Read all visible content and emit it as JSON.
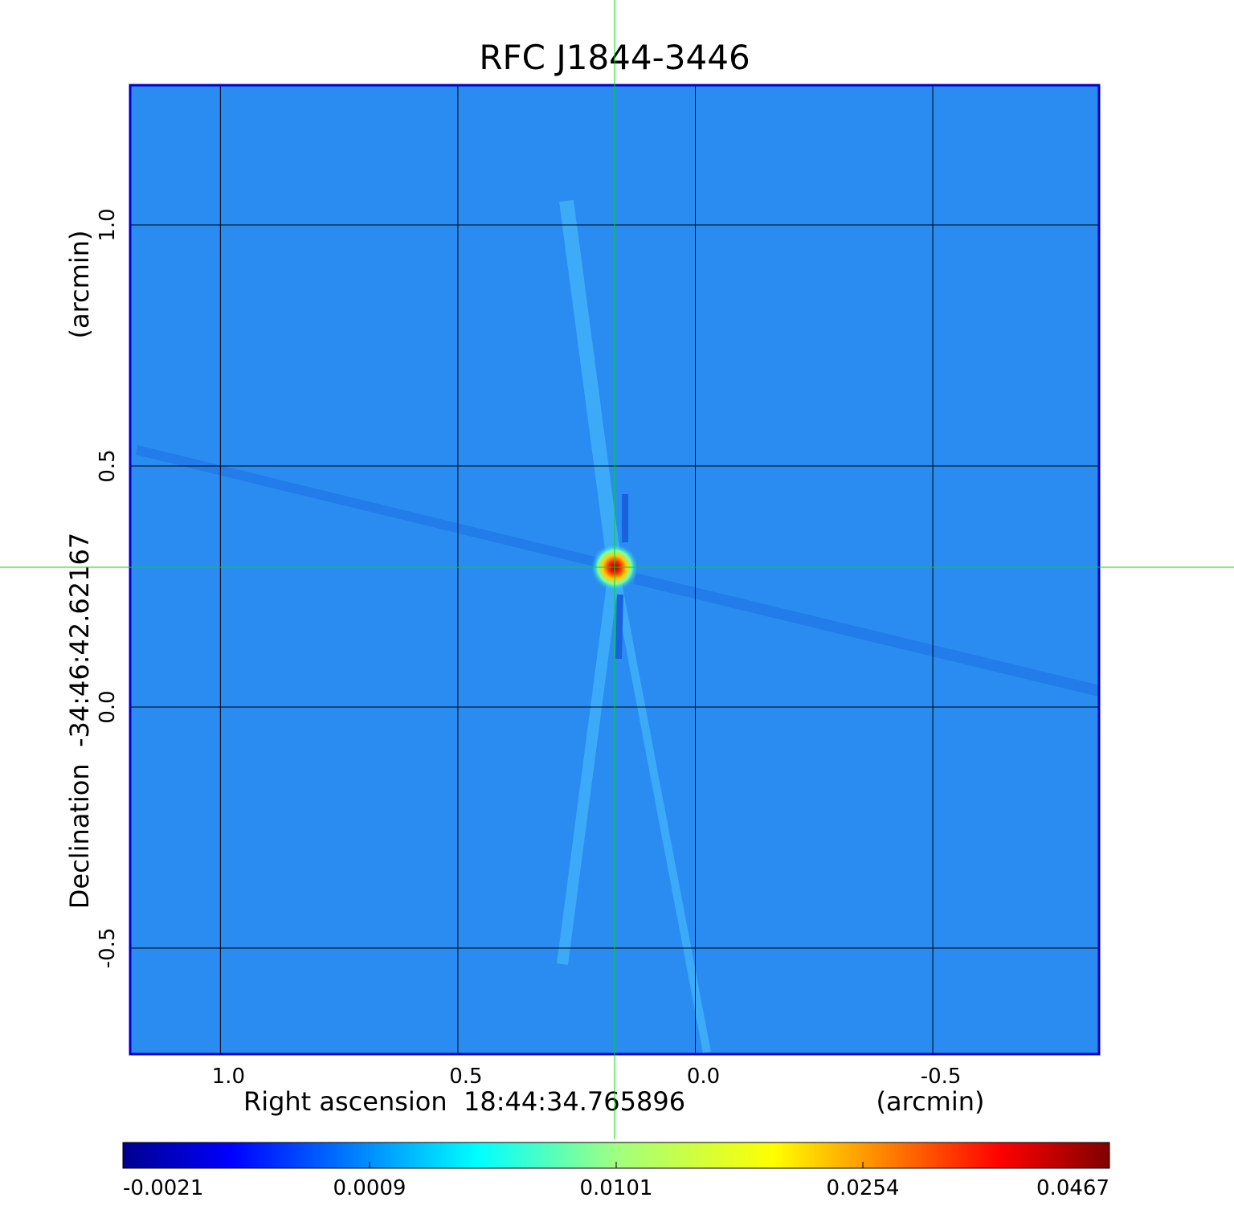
{
  "chart_data": {
    "type": "heatmap",
    "title": "RFC J1844-3446",
    "xlabel": "Right ascension  18:44:34.765896",
    "x_unit_label": "(arcmin)",
    "ylabel": "Declination  -34:46:42.62167",
    "y_unit_label": "(arcmin)",
    "x_ticks": [
      "1.0",
      "0.5",
      "0.0",
      "-0.5"
    ],
    "y_ticks": [
      "1.0",
      "0.5",
      "0.0",
      "-0.5"
    ],
    "x_tick_values": [
      1.0,
      0.5,
      0.0,
      -0.5
    ],
    "y_tick_values": [
      1.0,
      0.5,
      0.0,
      -0.5
    ],
    "xlim": [
      1.19,
      -0.85
    ],
    "ylim": [
      -0.72,
      1.29
    ],
    "grid": true,
    "colormap": "jet",
    "colorbar": {
      "tick_labels": [
        "-0.0021",
        "0.0009",
        "0.0101",
        "0.0254",
        "0.0467"
      ],
      "min": -0.0021,
      "max": 0.0467
    },
    "peak": {
      "x": 0.17,
      "y": 0.29,
      "value": 0.0467
    },
    "crosshair": {
      "x": 0.17,
      "y": 0.29,
      "color": "#00dd00"
    },
    "colors": {
      "title": "#1010d0",
      "frame": "#0000cc",
      "grid": "#000000"
    }
  }
}
